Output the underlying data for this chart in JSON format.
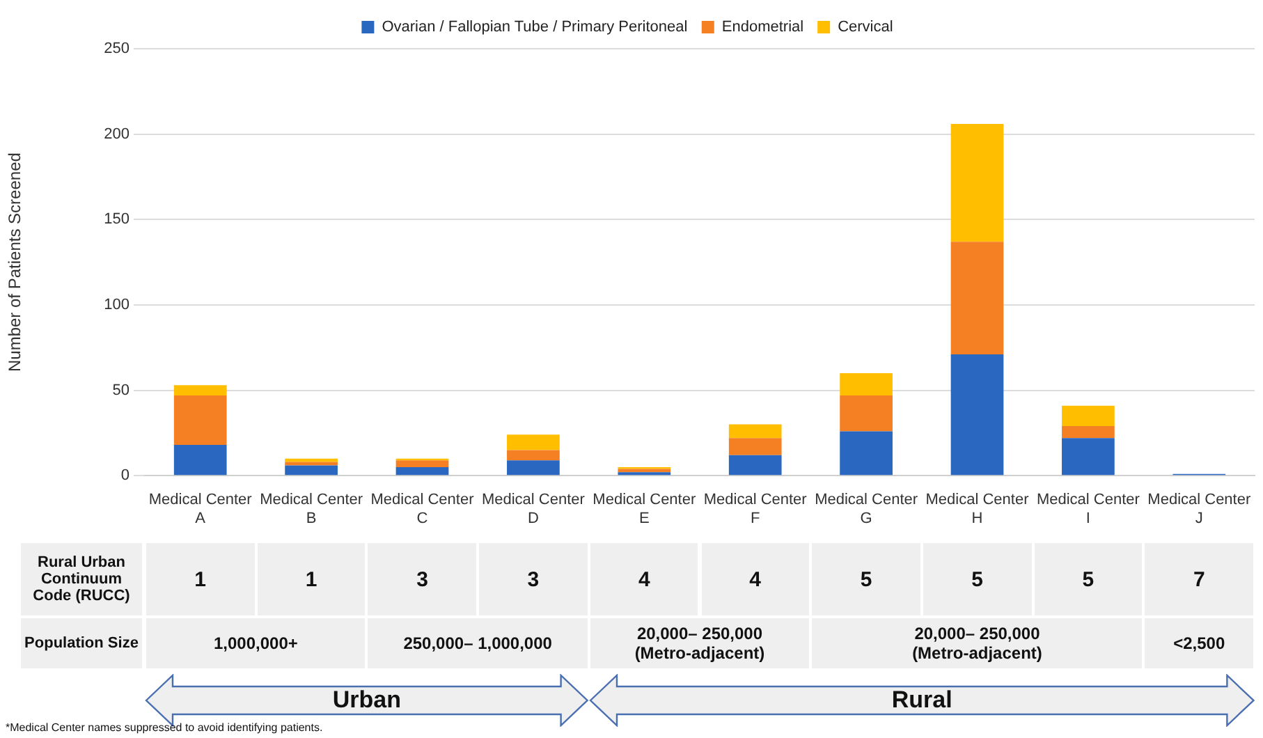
{
  "chart_data": {
    "type": "bar",
    "stacked": true,
    "ylabel": "Number of Patients Screened",
    "categories": [
      "Medical Center A",
      "Medical Center B",
      "Medical Center C",
      "Medical Center D",
      "Medical Center E",
      "Medical Center F",
      "Medical Center G",
      "Medical Center H",
      "Medical Center I",
      "Medical Center J"
    ],
    "series": [
      {
        "name": "Ovarian / Fallopian Tube / Primary Peritoneal",
        "color": "#2a67c0",
        "values": [
          18,
          6,
          5,
          9,
          2,
          12,
          26,
          71,
          22,
          1
        ]
      },
      {
        "name": "Endometrial",
        "color": "#f58024",
        "values": [
          29,
          2,
          4,
          6,
          2,
          10,
          21,
          66,
          7,
          0
        ]
      },
      {
        "name": "Cervical",
        "color": "#ffbf00",
        "values": [
          6,
          2,
          1,
          9,
          1,
          8,
          13,
          69,
          12,
          0
        ]
      }
    ],
    "ylim": [
      0,
      250
    ],
    "yticks": [
      0,
      50,
      100,
      150,
      200,
      250
    ],
    "grid": "y",
    "legend": "top",
    "annotations": [
      "Rural Urban Continuum Code (RUCC)",
      "1",
      "1",
      "3",
      "3",
      "4",
      "4",
      "5",
      "5",
      "5",
      "7",
      "Population Size",
      "1,000,000+",
      "250,000– 1,000,000",
      "20,000– 250,000\n(Metro-adjacent)",
      "20,000– 250,000\n(Metro-adjacent)",
      "<2,500",
      "Urban",
      "Rural",
      "*Medical Center names suppressed to avoid identifying patients."
    ]
  }
}
